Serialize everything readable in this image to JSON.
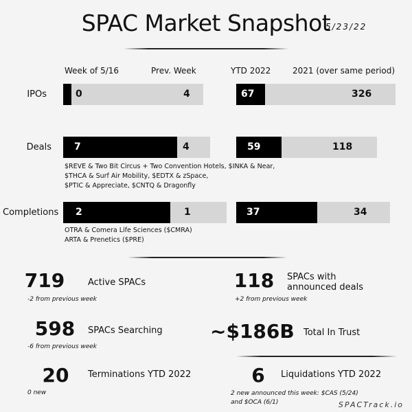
{
  "header": {
    "title": "SPAC Market Snapshot",
    "date": "5/23/22"
  },
  "columns": {
    "week": "Week of 5/16",
    "prev": "Prev. Week",
    "ytd": "YTD 2022",
    "prior": "2021 (over same period)"
  },
  "rows": {
    "ipos": {
      "label": "IPOs",
      "week": "0",
      "prev": "4",
      "ytd": "67",
      "prior": "326"
    },
    "deals": {
      "label": "Deals",
      "week": "7",
      "prev": "4",
      "ytd": "59",
      "prior": "118",
      "notes": [
        "$REVE & Two Bit Circus + Two Convention Hotels, $INKA & Near,",
        "$THCA & Surf Air Mobility, $EDTX & zSpace,",
        "$PTIC & Appreciate, $CNTQ & Dragonfly"
      ]
    },
    "completions": {
      "label": "Completions",
      "week": "2",
      "prev": "1",
      "ytd": "37",
      "prior": "34",
      "notes": [
        "OTRA & Comera Life Sciences ($CMRA)",
        "ARTA & Prenetics ($PRE)"
      ]
    }
  },
  "stats": {
    "active": {
      "value": "719",
      "label": "Active SPACs",
      "sub": "-2 from previous week"
    },
    "announced": {
      "value": "118",
      "label_line1": "SPACs with",
      "label_line2": "announced deals",
      "sub": "+2 from previous week"
    },
    "searching": {
      "value": "598",
      "label": "SPACs Searching",
      "sub": "-6 from previous week"
    },
    "trust": {
      "value": "~$186B",
      "label": "Total In Trust"
    },
    "terminations": {
      "value": "20",
      "label": "Terminations YTD 2022",
      "sub": "0 new"
    },
    "liquidations": {
      "value": "6",
      "label": "Liquidations YTD 2022",
      "sub_line1": "2 new announced this week: $CAS (5/24)",
      "sub_line2": "and $OCA (6/1)"
    }
  },
  "footer": {
    "brand": "SPACTrack.io"
  },
  "colors": {
    "black": "#000000",
    "grey": "#d6d6d6",
    "background": "#f4f4f4"
  }
}
